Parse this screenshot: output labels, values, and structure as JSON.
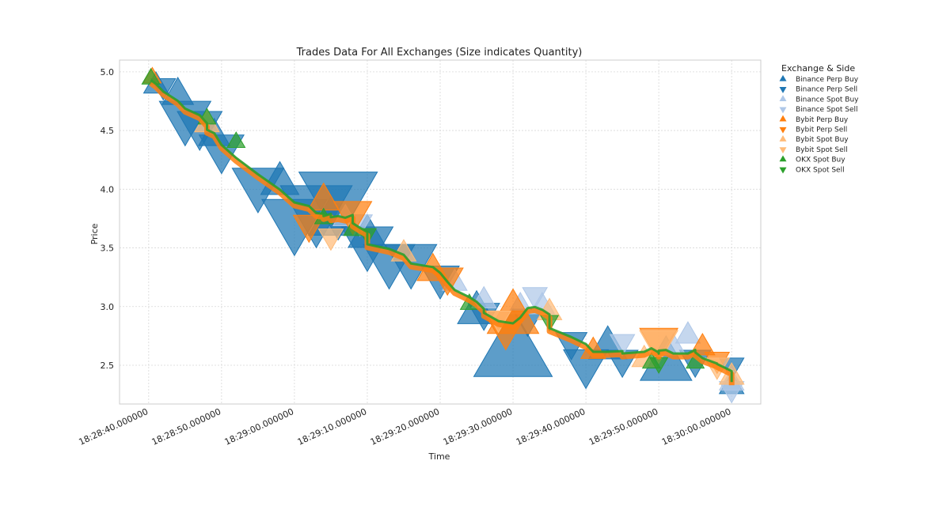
{
  "chart_data": {
    "type": "scatter",
    "title": "Trades Data For All Exchanges (Size indicates Quantity)",
    "xlabel": "Time",
    "ylabel": "Price",
    "x_axis_type": "time",
    "x_ticks": [
      "18:28:40.000000",
      "18:28:50.000000",
      "18:29:00.000000",
      "18:29:10.000000",
      "18:29:20.000000",
      "18:29:30.000000",
      "18:29:40.000000",
      "18:29:50.000000",
      "18:30:00.000000"
    ],
    "xlim": [
      "18:28:36.0",
      "18:30:04.0"
    ],
    "y_ticks": [
      2.5,
      3.0,
      3.5,
      4.0,
      4.5,
      5.0
    ],
    "ylim": [
      2.17,
      5.1
    ],
    "grid": true,
    "legend": {
      "title": "Exchange & Side",
      "placement": "outside-right"
    },
    "series": [
      {
        "name": "Binance Perp Buy",
        "marker": "triangle-up",
        "color": "#1f77b4",
        "points": [
          {
            "x": "18:28:41.0",
            "y": 4.88,
            "size": 0.2
          },
          {
            "x": "18:28:44.0",
            "y": 4.8,
            "size": 0.3
          },
          {
            "x": "18:28:49.0",
            "y": 4.45,
            "size": 0.3
          },
          {
            "x": "18:28:58.0",
            "y": 4.05,
            "size": 0.4
          },
          {
            "x": "18:29:05.0",
            "y": 3.72,
            "size": 0.5
          },
          {
            "x": "18:29:10.0",
            "y": 3.6,
            "size": 0.4
          },
          {
            "x": "18:29:25.0",
            "y": 2.95,
            "size": 0.4
          },
          {
            "x": "18:29:30.0",
            "y": 2.6,
            "size": 1.0
          },
          {
            "x": "18:29:43.0",
            "y": 2.65,
            "size": 0.4
          },
          {
            "x": "18:29:51.0",
            "y": 2.5,
            "size": 0.6
          },
          {
            "x": "18:30:00.0",
            "y": 2.32,
            "size": 0.2
          }
        ]
      },
      {
        "name": "Binance Perp Sell",
        "marker": "triangle-down",
        "color": "#1f77b4",
        "points": [
          {
            "x": "18:28:42.0",
            "y": 4.88,
            "size": 0.2
          },
          {
            "x": "18:28:45.0",
            "y": 4.62,
            "size": 0.6
          },
          {
            "x": "18:28:47.0",
            "y": 4.55,
            "size": 0.5
          },
          {
            "x": "18:28:50.0",
            "y": 4.35,
            "size": 0.5
          },
          {
            "x": "18:28:55.0",
            "y": 4.05,
            "size": 0.6
          },
          {
            "x": "18:29:00.0",
            "y": 3.75,
            "size": 0.8
          },
          {
            "x": "18:29:03.0",
            "y": 3.85,
            "size": 0.9
          },
          {
            "x": "18:29:06.0",
            "y": 3.95,
            "size": 1.0
          },
          {
            "x": "18:29:10.0",
            "y": 3.55,
            "size": 0.6
          },
          {
            "x": "18:29:13.0",
            "y": 3.4,
            "size": 0.6
          },
          {
            "x": "18:29:16.0",
            "y": 3.4,
            "size": 0.6
          },
          {
            "x": "18:29:20.0",
            "y": 3.25,
            "size": 0.4
          },
          {
            "x": "18:29:26.0",
            "y": 2.95,
            "size": 0.3
          },
          {
            "x": "18:29:32.0",
            "y": 2.9,
            "size": 0.3
          },
          {
            "x": "18:29:38.0",
            "y": 2.7,
            "size": 0.3
          },
          {
            "x": "18:29:40.0",
            "y": 2.52,
            "size": 0.5
          },
          {
            "x": "18:29:45.0",
            "y": 2.55,
            "size": 0.3
          },
          {
            "x": "18:29:55.0",
            "y": 2.55,
            "size": 0.3
          },
          {
            "x": "18:30:00.0",
            "y": 2.5,
            "size": 0.2
          }
        ]
      },
      {
        "name": "Binance Spot Buy",
        "marker": "triangle-up",
        "color": "#aec7e8",
        "points": [
          {
            "x": "18:29:07.0",
            "y": 3.75,
            "size": 0.2
          },
          {
            "x": "18:29:22.0",
            "y": 3.2,
            "size": 0.2
          },
          {
            "x": "18:29:26.0",
            "y": 3.05,
            "size": 0.2
          },
          {
            "x": "18:29:31.0",
            "y": 3.0,
            "size": 0.2
          },
          {
            "x": "18:29:34.0",
            "y": 3.0,
            "size": 0.2
          },
          {
            "x": "18:29:52.0",
            "y": 2.65,
            "size": 0.2
          },
          {
            "x": "18:29:54.0",
            "y": 2.75,
            "size": 0.2
          },
          {
            "x": "18:30:00.0",
            "y": 2.35,
            "size": 0.2
          }
        ]
      },
      {
        "name": "Binance Spot Sell",
        "marker": "triangle-down",
        "color": "#aec7e8",
        "points": [
          {
            "x": "18:29:09.0",
            "y": 3.72,
            "size": 0.2
          },
          {
            "x": "18:29:33.0",
            "y": 3.1,
            "size": 0.2
          },
          {
            "x": "18:29:45.0",
            "y": 2.7,
            "size": 0.2
          },
          {
            "x": "18:30:00.0",
            "y": 2.3,
            "size": 0.2
          }
        ]
      },
      {
        "name": "Bybit Perp Buy",
        "marker": "triangle-up",
        "color": "#ff7f0e",
        "points": [
          {
            "x": "18:28:40.5",
            "y": 4.95,
            "size": 0.1
          },
          {
            "x": "18:29:04.0",
            "y": 3.9,
            "size": 0.3
          },
          {
            "x": "18:29:19.0",
            "y": 3.3,
            "size": 0.3
          },
          {
            "x": "18:29:30.0",
            "y": 2.9,
            "size": 0.6
          },
          {
            "x": "18:29:41.0",
            "y": 2.62,
            "size": 0.2
          },
          {
            "x": "18:29:56.0",
            "y": 2.65,
            "size": 0.2
          }
        ]
      },
      {
        "name": "Bybit Perp Sell",
        "marker": "triangle-down",
        "color": "#ff7f0e",
        "points": [
          {
            "x": "18:29:02.0",
            "y": 3.7,
            "size": 0.3
          },
          {
            "x": "18:29:08.0",
            "y": 3.8,
            "size": 0.4
          },
          {
            "x": "18:29:21.0",
            "y": 3.25,
            "size": 0.3
          },
          {
            "x": "18:29:29.0",
            "y": 2.85,
            "size": 0.5
          },
          {
            "x": "18:29:50.0",
            "y": 2.72,
            "size": 0.4
          },
          {
            "x": "18:29:58.0",
            "y": 2.55,
            "size": 0.2
          }
        ]
      },
      {
        "name": "Bybit Spot Buy",
        "marker": "triangle-up",
        "color": "#ffbb78",
        "points": [
          {
            "x": "18:28:48.0",
            "y": 4.55,
            "size": 0.2
          },
          {
            "x": "18:29:15.0",
            "y": 3.45,
            "size": 0.2
          },
          {
            "x": "18:29:35.0",
            "y": 2.95,
            "size": 0.2
          },
          {
            "x": "18:29:48.0",
            "y": 2.55,
            "size": 0.2
          },
          {
            "x": "18:30:00.0",
            "y": 2.4,
            "size": 0.2
          }
        ]
      },
      {
        "name": "Bybit Spot Sell",
        "marker": "triangle-down",
        "color": "#ffbb78",
        "points": [
          {
            "x": "18:29:05.0",
            "y": 3.6,
            "size": 0.2
          },
          {
            "x": "18:29:28.0",
            "y": 2.9,
            "size": 0.2
          },
          {
            "x": "18:29:50.0",
            "y": 2.7,
            "size": 0.4
          },
          {
            "x": "18:29:58.0",
            "y": 2.5,
            "size": 0.2
          }
        ]
      },
      {
        "name": "OKX Spot Buy",
        "marker": "triangle-up",
        "color": "#2ca02c",
        "points": [
          {
            "x": "18:28:40.3",
            "y": 4.94,
            "size": 0.1
          },
          {
            "x": "18:28:48.0",
            "y": 4.6,
            "size": 0.1
          },
          {
            "x": "18:28:52.0",
            "y": 4.4,
            "size": 0.1
          },
          {
            "x": "18:29:04.0",
            "y": 3.75,
            "size": 0.1
          },
          {
            "x": "18:29:08.0",
            "y": 3.65,
            "size": 0.1
          },
          {
            "x": "18:29:24.0",
            "y": 3.02,
            "size": 0.1
          },
          {
            "x": "18:29:49.0",
            "y": 2.52,
            "size": 0.1
          },
          {
            "x": "18:29:55.0",
            "y": 2.52,
            "size": 0.1
          }
        ]
      },
      {
        "name": "OKX Spot Sell",
        "marker": "triangle-down",
        "color": "#2ca02c",
        "points": [
          {
            "x": "18:29:10.0",
            "y": 3.62,
            "size": 0.1
          },
          {
            "x": "18:29:35.0",
            "y": 2.88,
            "size": 0.1
          },
          {
            "x": "18:29:50.0",
            "y": 2.52,
            "size": 0.1
          }
        ]
      }
    ]
  }
}
